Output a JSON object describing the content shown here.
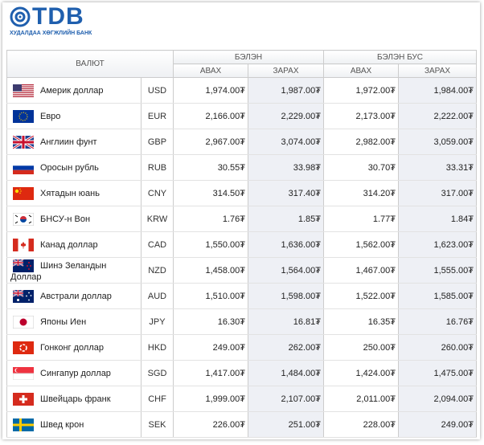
{
  "header": {
    "logo": "TDB",
    "subtitle": "ХУДАЛДАА ХӨГЖЛИЙН БАНК"
  },
  "table": {
    "columns": {
      "currency": "ВАЛЮТ",
      "cash": "БЭЛЭН",
      "noncash": "БЭЛЭН БУС",
      "sub": [
        "АВАХ",
        "ЗАРАХ",
        "АВАХ",
        "ЗАРАХ"
      ]
    },
    "rows": [
      [
        "Америк доллар",
        "USD",
        "1,974.00₮",
        "1,987.00₮",
        "1,972.00₮",
        "1,984.00₮"
      ],
      [
        "Евро",
        "EUR",
        "2,166.00₮",
        "2,229.00₮",
        "2,173.00₮",
        "2,222.00₮"
      ],
      [
        "Англиин фунт",
        "GBP",
        "2,967.00₮",
        "3,074.00₮",
        "2,982.00₮",
        "3,059.00₮"
      ],
      [
        "Оросын рубль",
        "RUB",
        "30.55₮",
        "33.98₮",
        "30.70₮",
        "33.31₮"
      ],
      [
        "Хятадын юань",
        "CNY",
        "314.50₮",
        "317.40₮",
        "314.20₮",
        "317.00₮"
      ],
      [
        "БНСУ-н Вон",
        "KRW",
        "1.76₮",
        "1.85₮",
        "1.77₮",
        "1.84₮"
      ],
      [
        "Канад доллар",
        "CAD",
        "1,550.00₮",
        "1,636.00₮",
        "1,562.00₮",
        "1,623.00₮"
      ],
      [
        "Шинэ Зеландын Доллар",
        "NZD",
        "1,458.00₮",
        "1,564.00₮",
        "1,467.00₮",
        "1,555.00₮"
      ],
      [
        "Австрали доллар",
        "AUD",
        "1,510.00₮",
        "1,598.00₮",
        "1,522.00₮",
        "1,585.00₮"
      ],
      [
        "Японы Иен",
        "JPY",
        "16.30₮",
        "16.81₮",
        "16.35₮",
        "16.76₮"
      ],
      [
        "Гонконг доллар",
        "HKD",
        "249.00₮",
        "262.00₮",
        "250.00₮",
        "260.00₮"
      ],
      [
        "Сингапур доллар",
        "SGD",
        "1,417.00₮",
        "1,484.00₮",
        "1,424.00₮",
        "1,475.00₮"
      ],
      [
        "Швейцарь франк",
        "CHF",
        "1,999.00₮",
        "2,107.00₮",
        "2,011.00₮",
        "2,094.00₮"
      ],
      [
        "Швед крон",
        "SEK",
        "226.00₮",
        "251.00₮",
        "228.00₮",
        "249.00₮"
      ]
    ]
  }
}
